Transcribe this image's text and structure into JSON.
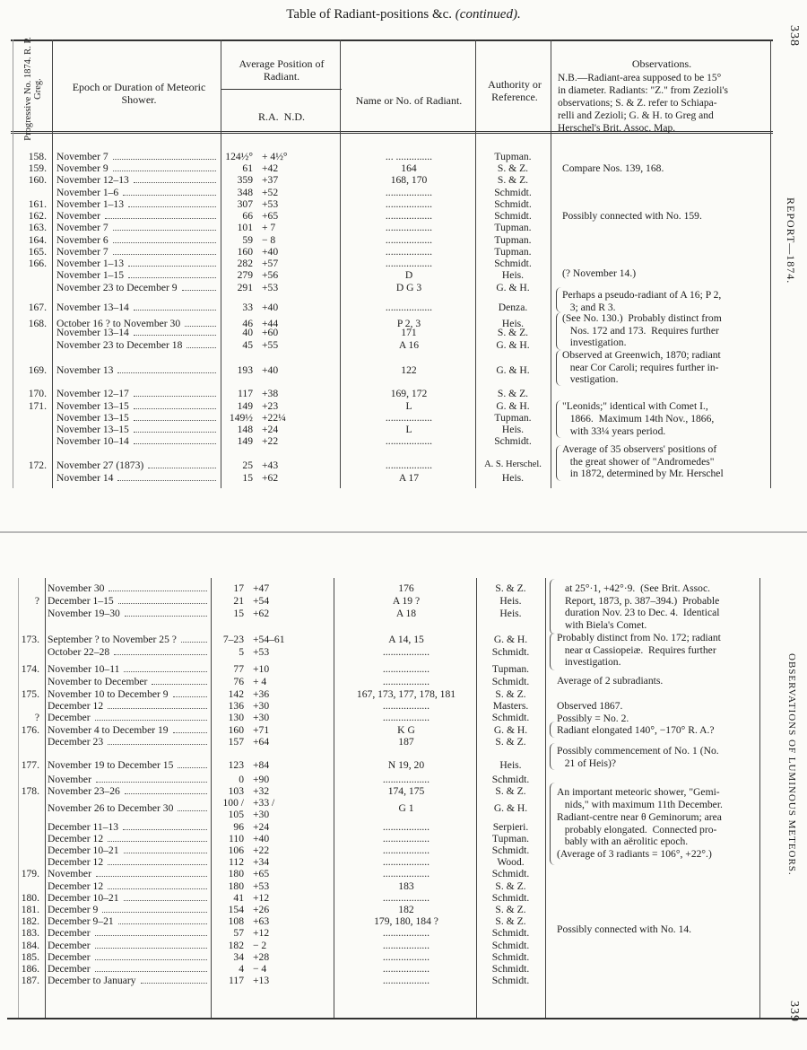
{
  "title": "Table of Radiant-positions &c.",
  "title_suffix": "(continued).",
  "page_top": "338",
  "page_bottom": "339",
  "running_head_top": "REPORT—1874.",
  "running_head_bottom": "OBSERVATIONS OF LUMINOUS METEORS.",
  "headers": {
    "progressive_no": "Progressive No. 1874. R. P. Greg.",
    "epoch": "Epoch or Duration of Meteoric Shower.",
    "position": "Average Position of Radiant.",
    "ra_nd": "R.A.  N.D.",
    "name": "Name or No. of Radiant.",
    "authority": "Authority or Reference.",
    "observations_title": "Observations.",
    "observations_note": [
      "N.B.—Radiant-area supposed to be 15°",
      "in diameter. Radiants: \"Z.\" from Zezioli's",
      "observations; S. & Z. refer to Schiapa-",
      "relli and Zezioli; G. & H. to Greg and",
      "Herschel's Brit. Assoc. Map."
    ]
  },
  "top_rows": [
    {
      "no": "158.",
      "epoch": "November 7",
      "ra": "124½°",
      "nd": "+ 4½°",
      "name": "... ..............",
      "auth": "Tupman."
    },
    {
      "no": "159.",
      "epoch": "November 9",
      "ra": "61",
      "nd": "+42",
      "name": "164",
      "auth": "S. & Z."
    },
    {
      "no": "160.",
      "epoch": "November 12–13",
      "ra": "359",
      "nd": "+37",
      "name": "168, 170",
      "auth": "S. & Z."
    },
    {
      "no": "",
      "epoch": "November 1–6",
      "ra": "348",
      "nd": "+52",
      "name": "..................",
      "auth": "Schmidt."
    },
    {
      "no": "161.",
      "epoch": "November 1–13",
      "ra": "307",
      "nd": "+53",
      "name": "..................",
      "auth": "Schmidt."
    },
    {
      "no": "162.",
      "epoch": "November",
      "ra": "66",
      "nd": "+65",
      "name": "..................",
      "auth": "Schmidt."
    },
    {
      "no": "163.",
      "epoch": "November 7",
      "ra": "101",
      "nd": "+ 7",
      "name": "..................",
      "auth": "Tupman."
    },
    {
      "no": "164.",
      "epoch": "November 6",
      "ra": "59",
      "nd": "− 8",
      "name": "..................",
      "auth": "Tupman."
    },
    {
      "no": "165.",
      "epoch": "November 7",
      "ra": "160",
      "nd": "+40",
      "name": "..................",
      "auth": "Tupman."
    },
    {
      "no": "166.",
      "epoch": "November 1–13",
      "ra": "282",
      "nd": "+57",
      "name": "..................",
      "auth": "Schmidt."
    },
    {
      "no": "",
      "epoch": "November 1–15",
      "ra": "279",
      "nd": "+56",
      "name": "D",
      "auth": "Heis."
    },
    {
      "no": "",
      "epoch": "November 23 to December 9",
      "ra": "291",
      "nd": "+53",
      "name": "D G 3",
      "auth": "G. & H."
    },
    {
      "no": "167.",
      "epoch": "November 13–14",
      "ra": "33",
      "nd": "+40",
      "name": "..................",
      "auth": "Denza."
    },
    {
      "no": "168.",
      "epoch": "October 16 ? to November 30",
      "ra": "46",
      "nd": "+44",
      "name": "P 2, 3",
      "auth": "Heis."
    },
    {
      "no": "",
      "epoch": "November 13–14",
      "ra": "40",
      "nd": "+60",
      "name": "171",
      "auth": "S. & Z."
    },
    {
      "no": "",
      "epoch": "November 23 to December 18",
      "ra": "45",
      "nd": "+55",
      "name": "A 16",
      "auth": "G. & H."
    },
    {
      "no": "169.",
      "epoch": "November 13",
      "ra": "193",
      "nd": "+40",
      "name": "122",
      "auth": "G. & H."
    },
    {
      "no": "170.",
      "epoch": "November 12–17",
      "ra": "117",
      "nd": "+38",
      "name": "169, 172",
      "auth": "S. & Z."
    },
    {
      "no": "171.",
      "epoch": "November 13–15",
      "ra": "149",
      "nd": "+23",
      "name": "L",
      "auth": "G. & H."
    },
    {
      "no": "",
      "epoch": "November 13–15",
      "ra": "149½",
      "nd": "+22¼",
      "name": "..................",
      "auth": "Tupman."
    },
    {
      "no": "",
      "epoch": "November 13–15",
      "ra": "148",
      "nd": "+24",
      "name": "L",
      "auth": "Heis."
    },
    {
      "no": "",
      "epoch": "November 10–14",
      "ra": "149",
      "nd": "+22",
      "name": "..................",
      "auth": "Schmidt."
    },
    {
      "no": "172.",
      "epoch": "November 27 (1873)",
      "ra": "25",
      "nd": "+43",
      "name": "..................",
      "auth": "A. S. Herschel."
    },
    {
      "no": "",
      "epoch": "November 14",
      "ra": "15",
      "nd": "+62",
      "name": "A 17",
      "auth": "Heis."
    }
  ],
  "top_observations": [
    "Compare Nos. 139, 168.",
    "Possibly connected with No. 159.",
    "(? November 14.)",
    "Perhaps a pseudo-radiant of A 16; P 2,",
    "   3; and R 3.",
    "(See No. 130.)  Probably distinct from",
    "   Nos. 172 and 173.  Requires further",
    "   investigation.",
    "Observed at Greenwich, 1870; radiant",
    "   near Cor Caroli; requires further in-",
    "   vestigation.",
    "\"Leonids;\" identical with Comet I.,",
    "   1866.  Maximum 14th Nov., 1866,",
    "   with 33¼ years period.",
    "Average of 35 observers' positions of",
    "   the great shower of \"Andromedes\"",
    "   in 1872, determined by Mr. Herschel"
  ],
  "bottom_rows": [
    {
      "no": "",
      "epoch": "November 30",
      "ra": "17",
      "nd": "+47",
      "name": "176",
      "auth": "S. & Z."
    },
    {
      "no": "?",
      "epoch": "December 1–15",
      "ra": "21",
      "nd": "+54",
      "name": "A 19 ?",
      "auth": "Heis."
    },
    {
      "no": "",
      "epoch": "November 19–30",
      "ra": "15",
      "nd": "+62",
      "name": "A 18",
      "auth": "Heis."
    },
    {
      "no": "173.",
      "epoch": "September ? to November 25 ?",
      "ra": "7–23",
      "nd": "+54–61",
      "name": "A 14, 15",
      "auth": "G. & H."
    },
    {
      "no": "",
      "epoch": "October 22–28",
      "ra": "5",
      "nd": "+53",
      "name": "..................",
      "auth": "Schmidt."
    },
    {
      "no": "174.",
      "epoch": "November 10–11",
      "ra": "77",
      "nd": "+10",
      "name": "..................",
      "auth": "Tupman."
    },
    {
      "no": "",
      "epoch": "November to December",
      "ra": "76",
      "nd": "+ 4",
      "name": "..................",
      "auth": "Schmidt."
    },
    {
      "no": "175.",
      "epoch": "November 10 to December 9",
      "ra": "142",
      "nd": "+36",
      "name": "167, 173, 177, 178, 181",
      "auth": "S. & Z."
    },
    {
      "no": "",
      "epoch": "December 12",
      "ra": "136",
      "nd": "+30",
      "name": "..................",
      "auth": "Masters."
    },
    {
      "no": "?",
      "epoch": "December",
      "ra": "130",
      "nd": "+30",
      "name": "..................",
      "auth": "Schmidt."
    },
    {
      "no": "176.",
      "epoch": "November 4 to December 19",
      "ra": "160",
      "nd": "+71",
      "name": "K G",
      "auth": "G. & H."
    },
    {
      "no": "",
      "epoch": "December 23",
      "ra": "157",
      "nd": "+64",
      "name": "187",
      "auth": "S. & Z."
    },
    {
      "no": "177.",
      "epoch": "November 19 to December 15",
      "ra": "123",
      "nd": "+84",
      "name": "N 19, 20",
      "auth": "Heis."
    },
    {
      "no": "",
      "epoch": "November",
      "ra": "0",
      "nd": "+90",
      "name": "..................",
      "auth": "Schmidt."
    },
    {
      "no": "178.",
      "epoch": "November 23–26",
      "ra": "103",
      "nd": "+32",
      "name": "174, 175",
      "auth": "S. & Z."
    },
    {
      "no": "",
      "epoch": "November 26 to December 30",
      "ra": "100 / 105",
      "nd": "+33 / +30",
      "name": "G 1",
      "auth": "G. & H."
    },
    {
      "no": "",
      "epoch": "December 11–13",
      "ra": "96",
      "nd": "+24",
      "name": "..................",
      "auth": "Serpieri."
    },
    {
      "no": "",
      "epoch": "December 12",
      "ra": "110",
      "nd": "+40",
      "name": "..................",
      "auth": "Tupman."
    },
    {
      "no": "",
      "epoch": "December 10–21",
      "ra": "106",
      "nd": "+22",
      "name": "..................",
      "auth": "Schmidt."
    },
    {
      "no": "",
      "epoch": "December 12",
      "ra": "112",
      "nd": "+34",
      "name": "..................",
      "auth": "Wood."
    },
    {
      "no": "179.",
      "epoch": "November",
      "ra": "180",
      "nd": "+65",
      "name": "..................",
      "auth": "Schmidt."
    },
    {
      "no": "",
      "epoch": "December 12",
      "ra": "180",
      "nd": "+53",
      "name": "183",
      "auth": "S. & Z."
    },
    {
      "no": "180.",
      "epoch": "December 10–21",
      "ra": "41",
      "nd": "+12",
      "name": "..................",
      "auth": "Schmidt."
    },
    {
      "no": "181.",
      "epoch": "December 9",
      "ra": "154",
      "nd": "+26",
      "name": "182",
      "auth": "S. & Z."
    },
    {
      "no": "182.",
      "epoch": "December 9–21",
      "ra": "108",
      "nd": "+63",
      "name": "179, 180, 184 ?",
      "auth": "S. & Z."
    },
    {
      "no": "183.",
      "epoch": "December",
      "ra": "57",
      "nd": "+12",
      "name": "..................",
      "auth": "Schmidt."
    },
    {
      "no": "184.",
      "epoch": "December",
      "ra": "182",
      "nd": "− 2",
      "name": "..................",
      "auth": "Schmidt."
    },
    {
      "no": "185.",
      "epoch": "December",
      "ra": "34",
      "nd": "+28",
      "name": "..................",
      "auth": "Schmidt."
    },
    {
      "no": "186.",
      "epoch": "December",
      "ra": "4",
      "nd": "− 4",
      "name": "..................",
      "auth": "Schmidt."
    },
    {
      "no": "187.",
      "epoch": "December to January",
      "ra": "117",
      "nd": "+13",
      "name": "..................",
      "auth": "Schmidt."
    }
  ],
  "bottom_observations": [
    "at 25°·1, +42°·9.  (See Brit. Assoc.",
    "Report, 1873, p. 387–394.)  Probable",
    "duration Nov. 23 to Dec. 4.  Identical",
    "with Biela's Comet.",
    "Probably distinct from No. 172; radiant",
    "   near α Cassiopeiæ.  Requires further",
    "   investigation.",
    "Average of 2 subradiants.",
    "Observed 1867.",
    "Possibly = No. 2.",
    "Radiant elongated 140°, −170° R. A.?",
    "Possibly commencement of No. 1 (No.",
    "   21 of Heis)?",
    "An important meteoric shower, \"Gemi-",
    "   nids,\" with maximum 11th December.",
    "Radiant-centre near θ Geminorum; area",
    "   probably elongated.  Connected pro-",
    "   bably with an aërolitic epoch.",
    "(Average of 3 radiants = 106°, +22°.)",
    "Possibly connected with No. 14."
  ]
}
